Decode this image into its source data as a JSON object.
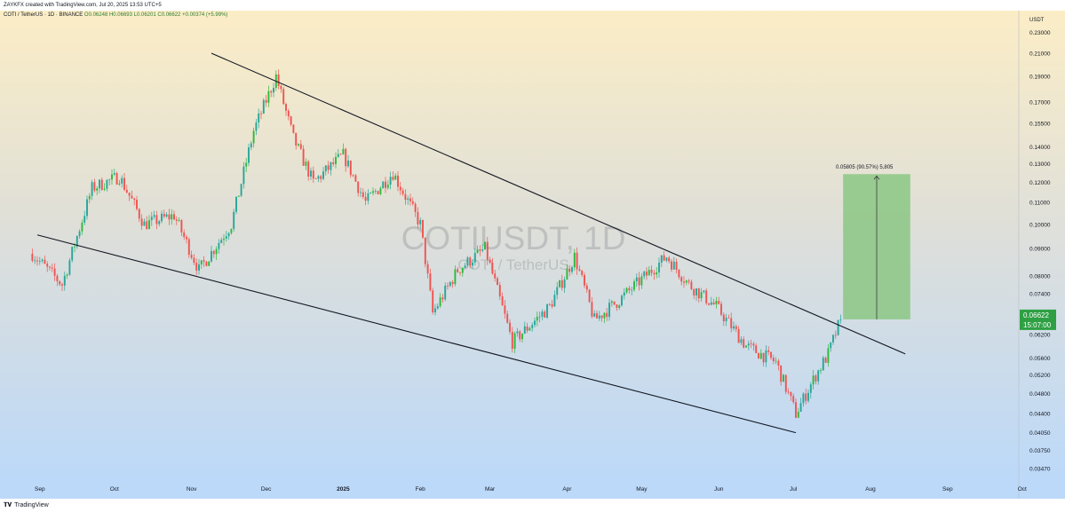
{
  "header": {
    "attribution": "ZAYKFX created with TradingView.com, Jul 20, 2025 13:53 UTC+5"
  },
  "legend": {
    "symbol_line": "COTI / TetherUS · 1D · BINANCE",
    "open": "O0.06248",
    "high": "H0.06693",
    "low": "L0.06201",
    "close": "C0.06622",
    "change": "+0.00374 (+5.99%)"
  },
  "watermark": {
    "ticker": "COTIUSDT, 1D",
    "name": "COTI / TetherUS"
  },
  "price_axis": {
    "currency": "USDT",
    "ticks": [
      "0.23000",
      "0.21000",
      "0.19000",
      "0.17000",
      "0.15500",
      "0.14000",
      "0.13000",
      "0.12000",
      "0.11000",
      "0.10000",
      "0.09000",
      "0.08000",
      "0.07400",
      "0.06800",
      "0.06200",
      "0.05600",
      "0.05200",
      "0.04800",
      "0.04400",
      "0.04050",
      "0.03750",
      "0.03470"
    ],
    "last_price": "0.06622",
    "countdown": "15:07:00"
  },
  "time_axis": {
    "labels": [
      "Sep",
      "Oct",
      "Nov",
      "Dec",
      "2025",
      "Feb",
      "Mar",
      "Apr",
      "May",
      "Jun",
      "Jul",
      "Aug",
      "Sep",
      "Oct"
    ]
  },
  "measure": {
    "label": "0.05805 (90.57%) 5,805",
    "from": 0.06622,
    "to": 0.1243
  },
  "footer": {
    "brand": "TradingView"
  },
  "colors": {
    "up": "#26a69a",
    "up_bright": "#2db93b",
    "down": "#ef5350",
    "price_tag": "#2ea043",
    "target_box": "#8bc784",
    "trendline": "#131722"
  },
  "chart_data": {
    "type": "candlestick",
    "scale": "log",
    "ylim": [
      0.0347,
      0.23
    ],
    "x_axis": "date",
    "grid": false,
    "upper_trendline": [
      [
        "2024-11-09",
        0.21
      ],
      [
        "2025-08-15",
        0.057
      ]
    ],
    "lower_trendline": [
      [
        "2024-08-31",
        0.0955
      ],
      [
        "2025-07-02",
        0.0405
      ]
    ],
    "approx_path": [
      [
        "2024-08-29",
        0.088
      ],
      [
        "2024-09-10",
        0.077
      ],
      [
        "2024-09-22",
        0.117
      ],
      [
        "2024-10-03",
        0.123
      ],
      [
        "2024-10-13",
        0.1
      ],
      [
        "2024-10-25",
        0.104
      ],
      [
        "2024-11-04",
        0.082
      ],
      [
        "2024-11-17",
        0.1
      ],
      [
        "2024-11-26",
        0.15
      ],
      [
        "2024-12-05",
        0.19
      ],
      [
        "2024-12-12",
        0.145
      ],
      [
        "2024-12-20",
        0.12
      ],
      [
        "2025-01-01",
        0.135
      ],
      [
        "2025-01-10",
        0.11
      ],
      [
        "2025-01-21",
        0.125
      ],
      [
        "2025-02-01",
        0.1
      ],
      [
        "2025-02-06",
        0.068
      ],
      [
        "2025-02-16",
        0.082
      ],
      [
        "2025-02-27",
        0.09
      ],
      [
        "2025-03-10",
        0.06
      ],
      [
        "2025-03-25",
        0.07
      ],
      [
        "2025-04-04",
        0.087
      ],
      [
        "2025-04-12",
        0.066
      ],
      [
        "2025-04-22",
        0.072
      ],
      [
        "2025-04-30",
        0.078
      ],
      [
        "2025-05-11",
        0.087
      ],
      [
        "2025-05-20",
        0.077
      ],
      [
        "2025-05-31",
        0.07
      ],
      [
        "2025-06-12",
        0.059
      ],
      [
        "2025-06-24",
        0.055
      ],
      [
        "2025-07-02",
        0.044
      ],
      [
        "2025-07-10",
        0.052
      ],
      [
        "2025-07-15",
        0.057
      ],
      [
        "2025-07-20",
        0.06622
      ]
    ],
    "last_close": 0.06622
  }
}
